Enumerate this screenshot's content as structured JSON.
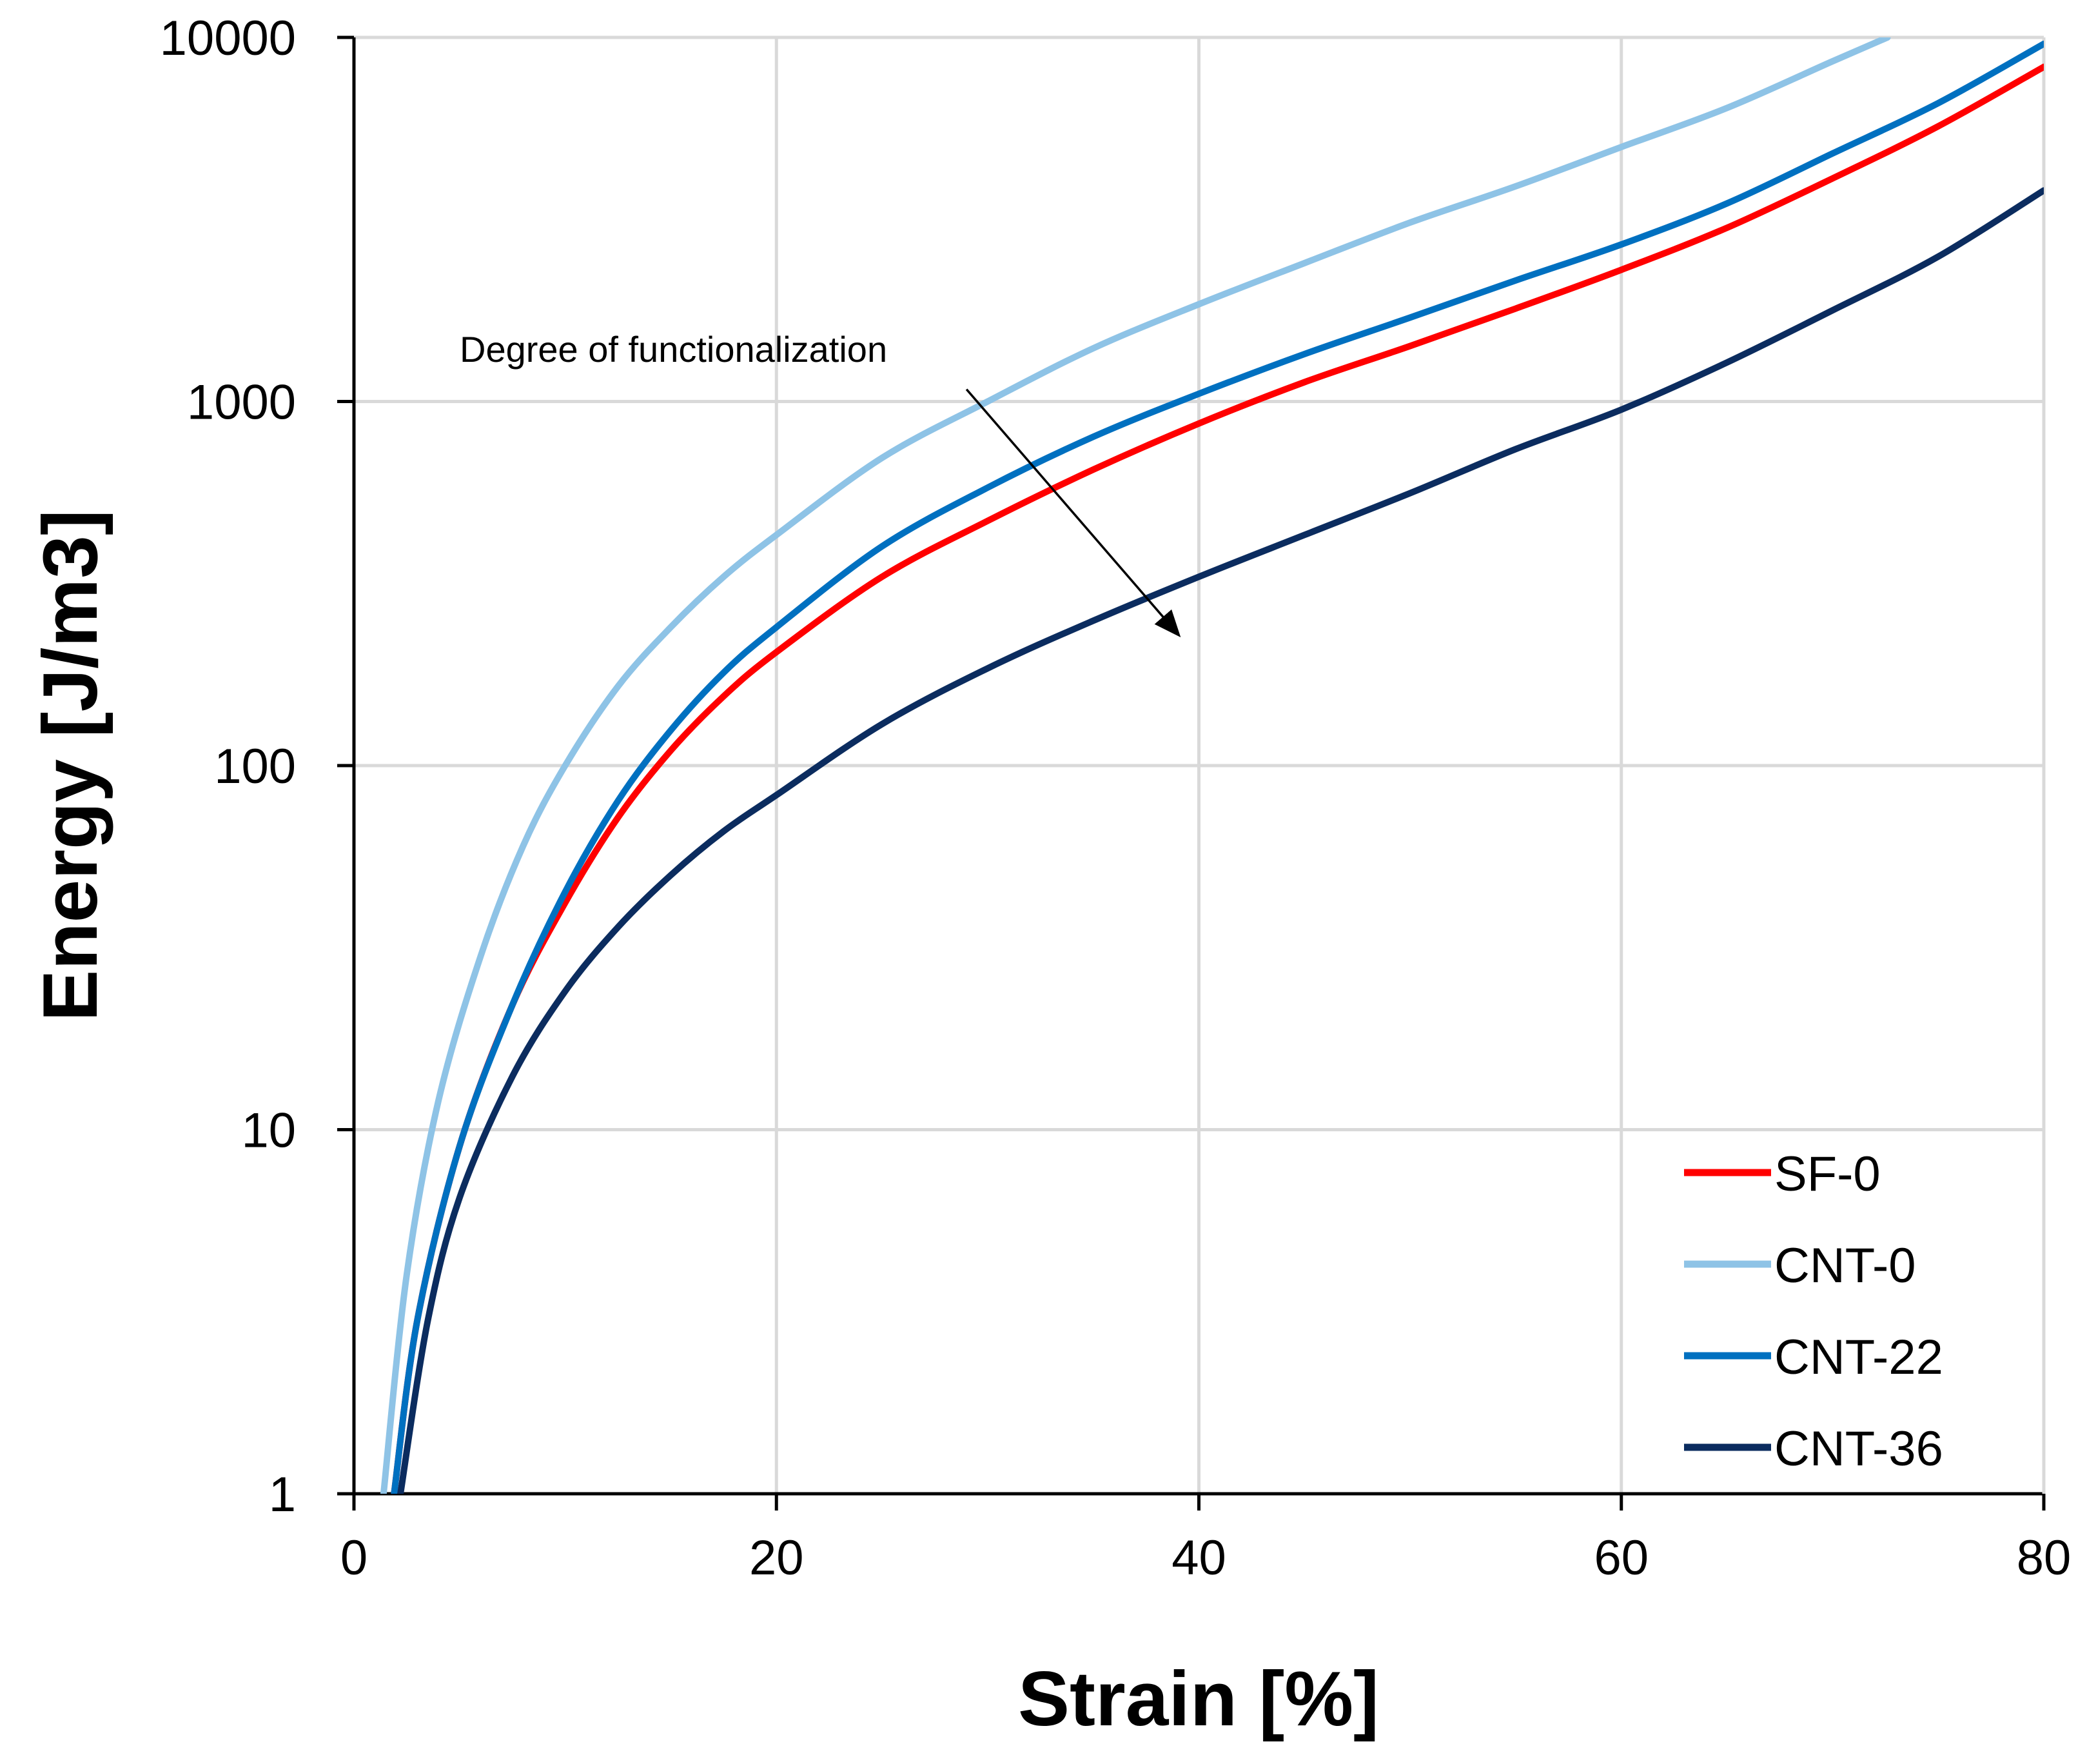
{
  "chart_data": {
    "type": "line",
    "title": "",
    "xlabel": "Strain [%]",
    "ylabel": "Energy [J/m3]",
    "xlim": [
      0,
      80
    ],
    "ylim": [
      1,
      10000
    ],
    "yscale": "log",
    "grid": true,
    "legend_position": "bottom-right",
    "x_ticks": [
      0,
      20,
      40,
      60,
      80
    ],
    "x_tick_labels": [
      "0",
      "20",
      "40",
      "60",
      "80"
    ],
    "y_ticks": [
      1,
      10,
      100,
      1000,
      10000
    ],
    "y_tick_labels": [
      "1",
      "10",
      "100",
      "1000",
      "10000"
    ],
    "series": [
      {
        "name": "SF-0",
        "color": "#ff0000",
        "x": [
          1.9,
          3,
          5,
          7.5,
          10,
          12.5,
          15,
          17.5,
          20,
          25,
          30,
          35,
          40,
          45,
          50,
          55,
          60,
          65,
          70,
          75,
          80
        ],
        "y": [
          1,
          3,
          9,
          22,
          42,
          72,
          110,
          155,
          205,
          330,
          470,
          650,
          870,
          1130,
          1420,
          1800,
          2300,
          3000,
          4100,
          5700,
          8300
        ]
      },
      {
        "name": "CNT-0",
        "color": "#8ec3e6",
        "x": [
          1.4,
          2.5,
          4,
          6,
          8,
          10,
          12.5,
          15,
          17.5,
          20,
          25,
          30,
          35,
          40,
          45,
          50,
          55,
          60,
          65,
          70,
          72.6
        ],
        "y": [
          1,
          4,
          12,
          30,
          60,
          100,
          165,
          240,
          330,
          430,
          700,
          1000,
          1400,
          1850,
          2400,
          3100,
          3900,
          5000,
          6400,
          8600,
          10000
        ]
      },
      {
        "name": "CNT-22",
        "color": "#0070c0",
        "x": [
          1.9,
          3,
          5,
          7.5,
          10,
          12.5,
          15,
          17.5,
          20,
          25,
          30,
          35,
          40,
          45,
          50,
          55,
          60,
          65,
          70,
          75,
          80
        ],
        "y": [
          1,
          3,
          9,
          22,
          45,
          80,
          125,
          180,
          240,
          400,
          580,
          800,
          1050,
          1350,
          1700,
          2150,
          2700,
          3500,
          4800,
          6600,
          9600
        ]
      },
      {
        "name": "CNT-36",
        "color": "#0b2c5f",
        "x": [
          2.2,
          3.5,
          5,
          7.5,
          10,
          12.5,
          15,
          17.5,
          20,
          25,
          30,
          35,
          40,
          45,
          50,
          55,
          60,
          65,
          70,
          75,
          80
        ],
        "y": [
          1,
          3,
          6.5,
          14,
          24,
          36,
          50,
          66,
          83,
          130,
          185,
          250,
          330,
          430,
          560,
          740,
          950,
          1280,
          1780,
          2500,
          3800
        ]
      }
    ],
    "annotation": {
      "text": "Degree of functionalization",
      "arrow_from": [
        29,
        1080
      ],
      "arrow_to": [
        39,
        230
      ]
    }
  }
}
